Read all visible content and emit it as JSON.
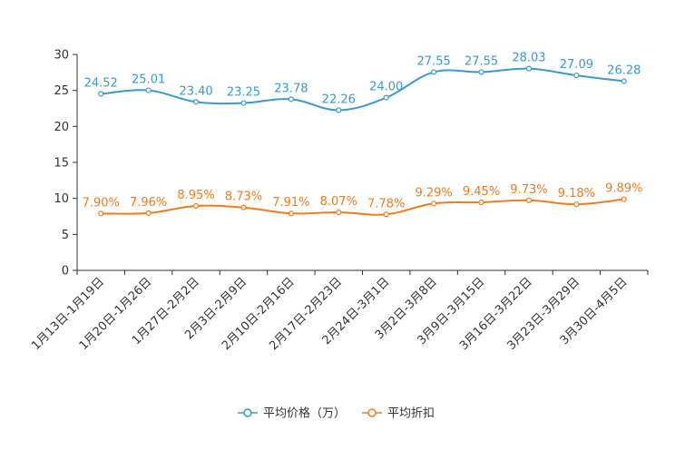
{
  "chart_data": {
    "type": "line",
    "title": "",
    "xlabel": "",
    "ylabel": "",
    "ylim": [
      0,
      30
    ],
    "yticks": [
      0,
      5,
      10,
      15,
      20,
      25,
      30
    ],
    "categories": [
      "1月13日-1月19日",
      "1月20日-1月26日",
      "1月27日-2月2日",
      "2月3日-2月9日",
      "2月10日-2月16日",
      "2月17日-2月23日",
      "2月24日-3月1日",
      "3月2日-3月8日",
      "3月9日-3月15日",
      "3月16日-3月22日",
      "3月23日-3月29日",
      "3月30日-4月5日"
    ],
    "series": [
      {
        "name": "平均价格（万）",
        "color": "#3c9ac8",
        "values": [
          24.52,
          25.01,
          23.4,
          23.25,
          23.78,
          22.26,
          24.0,
          27.55,
          27.55,
          28.03,
          27.09,
          26.28
        ],
        "labels": [
          "24.52",
          "25.01",
          "23.40",
          "23.25",
          "23.78",
          "22.26",
          "24.00",
          "27.55",
          "27.55",
          "28.03",
          "27.09",
          "26.28"
        ]
      },
      {
        "name": "平均折扣",
        "color": "#f07c1e",
        "values": [
          7.9,
          7.96,
          8.95,
          8.73,
          7.91,
          8.07,
          7.78,
          9.29,
          9.45,
          9.73,
          9.18,
          9.89
        ],
        "labels": [
          "7.90%",
          "7.96%",
          "8.95%",
          "8.73%",
          "7.91%",
          "8.07%",
          "7.78%",
          "9.29%",
          "9.45%",
          "9.73%",
          "9.18%",
          "9.89%"
        ]
      }
    ],
    "legend_position": "bottom-center"
  }
}
